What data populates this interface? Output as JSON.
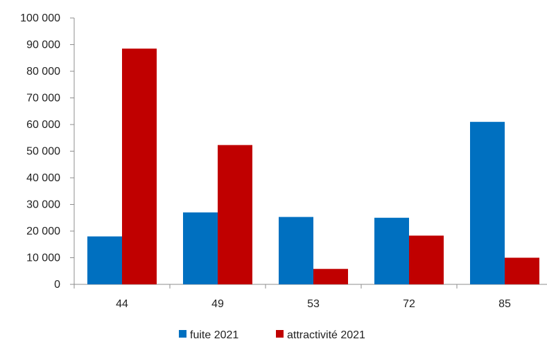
{
  "chart_data": {
    "type": "bar",
    "categories": [
      "44",
      "49",
      "53",
      "72",
      "85"
    ],
    "series": [
      {
        "name": "fuite 2021",
        "values": [
          18000,
          27000,
          25300,
          25000,
          61000
        ],
        "color": "#0070c0"
      },
      {
        "name": "attractivité 2021",
        "values": [
          88500,
          52300,
          5800,
          18300,
          10000
        ],
        "color": "#c00000"
      }
    ],
    "ylim": [
      0,
      100000
    ],
    "yticks": [
      0,
      10000,
      20000,
      30000,
      40000,
      50000,
      60000,
      70000,
      80000,
      90000,
      100000
    ],
    "ytick_labels": [
      "0",
      "10 000",
      "20 000",
      "30 000",
      "40 000",
      "50 000",
      "60 000",
      "70 000",
      "80 000",
      "90 000",
      "100 000"
    ],
    "grid": false,
    "legend_position": "bottom",
    "title": "",
    "xlabel": "",
    "ylabel": ""
  }
}
